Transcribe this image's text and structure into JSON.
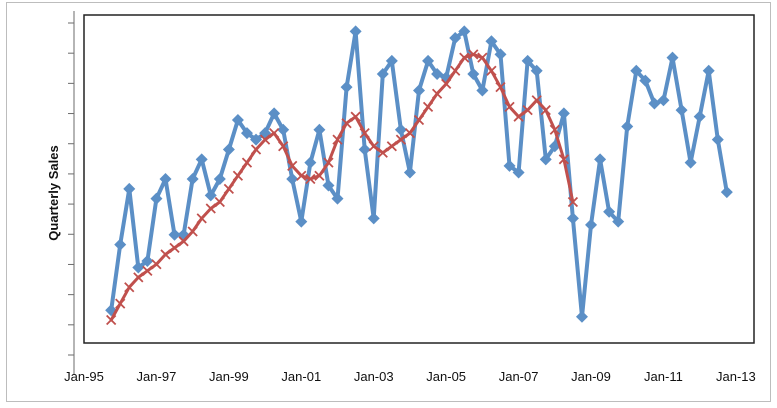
{
  "chart_data": {
    "type": "line",
    "title": "",
    "xlabel": "",
    "ylabel": "Quarterly Sales",
    "x_ticks": [
      "Jan-95",
      "Jan-97",
      "Jan-99",
      "Jan-01",
      "Jan-03",
      "Jan-05",
      "Jan-07",
      "Jan-09",
      "Jan-11",
      "Jan-13"
    ],
    "x_range": [
      "1995-01",
      "2013-07"
    ],
    "y_range": [
      0,
      100
    ],
    "y_tick_count": 12,
    "grid": false,
    "legend": "none",
    "series": [
      {
        "color": "#5b8fc6",
        "marker": "diamond",
        "x": [
          "1995-10",
          "1996-01",
          "1996-04",
          "1996-07",
          "1996-10",
          "1997-01",
          "1997-04",
          "1997-07",
          "1997-10",
          "1998-01",
          "1998-04",
          "1998-07",
          "1998-10",
          "1999-01",
          "1999-04",
          "1999-07",
          "1999-10",
          "2000-01",
          "2000-04",
          "2000-07",
          "2000-10",
          "2001-01",
          "2001-04",
          "2001-07",
          "2001-10",
          "2002-01",
          "2002-04",
          "2002-07",
          "2002-10",
          "2003-01",
          "2003-04",
          "2003-07",
          "2003-10",
          "2004-01",
          "2004-04",
          "2004-07",
          "2004-10",
          "2005-01",
          "2005-04",
          "2005-07",
          "2005-10",
          "2006-01",
          "2006-04",
          "2006-07",
          "2006-10",
          "2007-01",
          "2007-04",
          "2007-07",
          "2007-10",
          "2008-01",
          "2008-04",
          "2008-07",
          "2008-10",
          "2009-01",
          "2009-04",
          "2009-07",
          "2009-10",
          "2010-01",
          "2010-04",
          "2010-07",
          "2010-10",
          "2011-01",
          "2011-04",
          "2011-07",
          "2011-10",
          "2012-01",
          "2012-04",
          "2012-07",
          "2012-10"
        ],
        "values": [
          10,
          30,
          47,
          23,
          25,
          44,
          50,
          33,
          33,
          50,
          56,
          45,
          50,
          59,
          68,
          64,
          62,
          64,
          70,
          65,
          50,
          37,
          55,
          65,
          48,
          44,
          78,
          95,
          59,
          38,
          82,
          86,
          65,
          52,
          77,
          86,
          82,
          81,
          93,
          95,
          82,
          77,
          92,
          88,
          54,
          52,
          86,
          83,
          56,
          60,
          70,
          38,
          8,
          36,
          56,
          40,
          37,
          66,
          83,
          80,
          73,
          74,
          87,
          71,
          55,
          69,
          83,
          62,
          46
        ]
      },
      {
        "color": "#c0504d",
        "marker": "x",
        "x": [
          "1995-10",
          "1996-01",
          "1996-04",
          "1996-07",
          "1996-10",
          "1997-01",
          "1997-04",
          "1997-07",
          "1997-10",
          "1998-01",
          "1998-04",
          "1998-07",
          "1998-10",
          "1999-01",
          "1999-04",
          "1999-07",
          "1999-10",
          "2000-01",
          "2000-04",
          "2000-07",
          "2000-10",
          "2001-01",
          "2001-04",
          "2001-07",
          "2001-10",
          "2002-01",
          "2002-04",
          "2002-07",
          "2002-10",
          "2003-01",
          "2003-04",
          "2003-07",
          "2003-10",
          "2004-01",
          "2004-04",
          "2004-07",
          "2004-10",
          "2005-01",
          "2005-04",
          "2005-07",
          "2005-10",
          "2006-01",
          "2006-04",
          "2006-07",
          "2006-10",
          "2007-01",
          "2007-04",
          "2007-07",
          "2007-10",
          "2008-01",
          "2008-04",
          "2008-07"
        ],
        "values": [
          7,
          12,
          17,
          20,
          22,
          24,
          27,
          29,
          31,
          34,
          38,
          41,
          43,
          47,
          51,
          55,
          59,
          62,
          64,
          60,
          54,
          51,
          50,
          51,
          55,
          62,
          67,
          69,
          64,
          60,
          58,
          60,
          62,
          64,
          68,
          72,
          76,
          79,
          83,
          87,
          88,
          87,
          83,
          78,
          72,
          69,
          71,
          74,
          71,
          65,
          56,
          43
        ]
      }
    ]
  }
}
